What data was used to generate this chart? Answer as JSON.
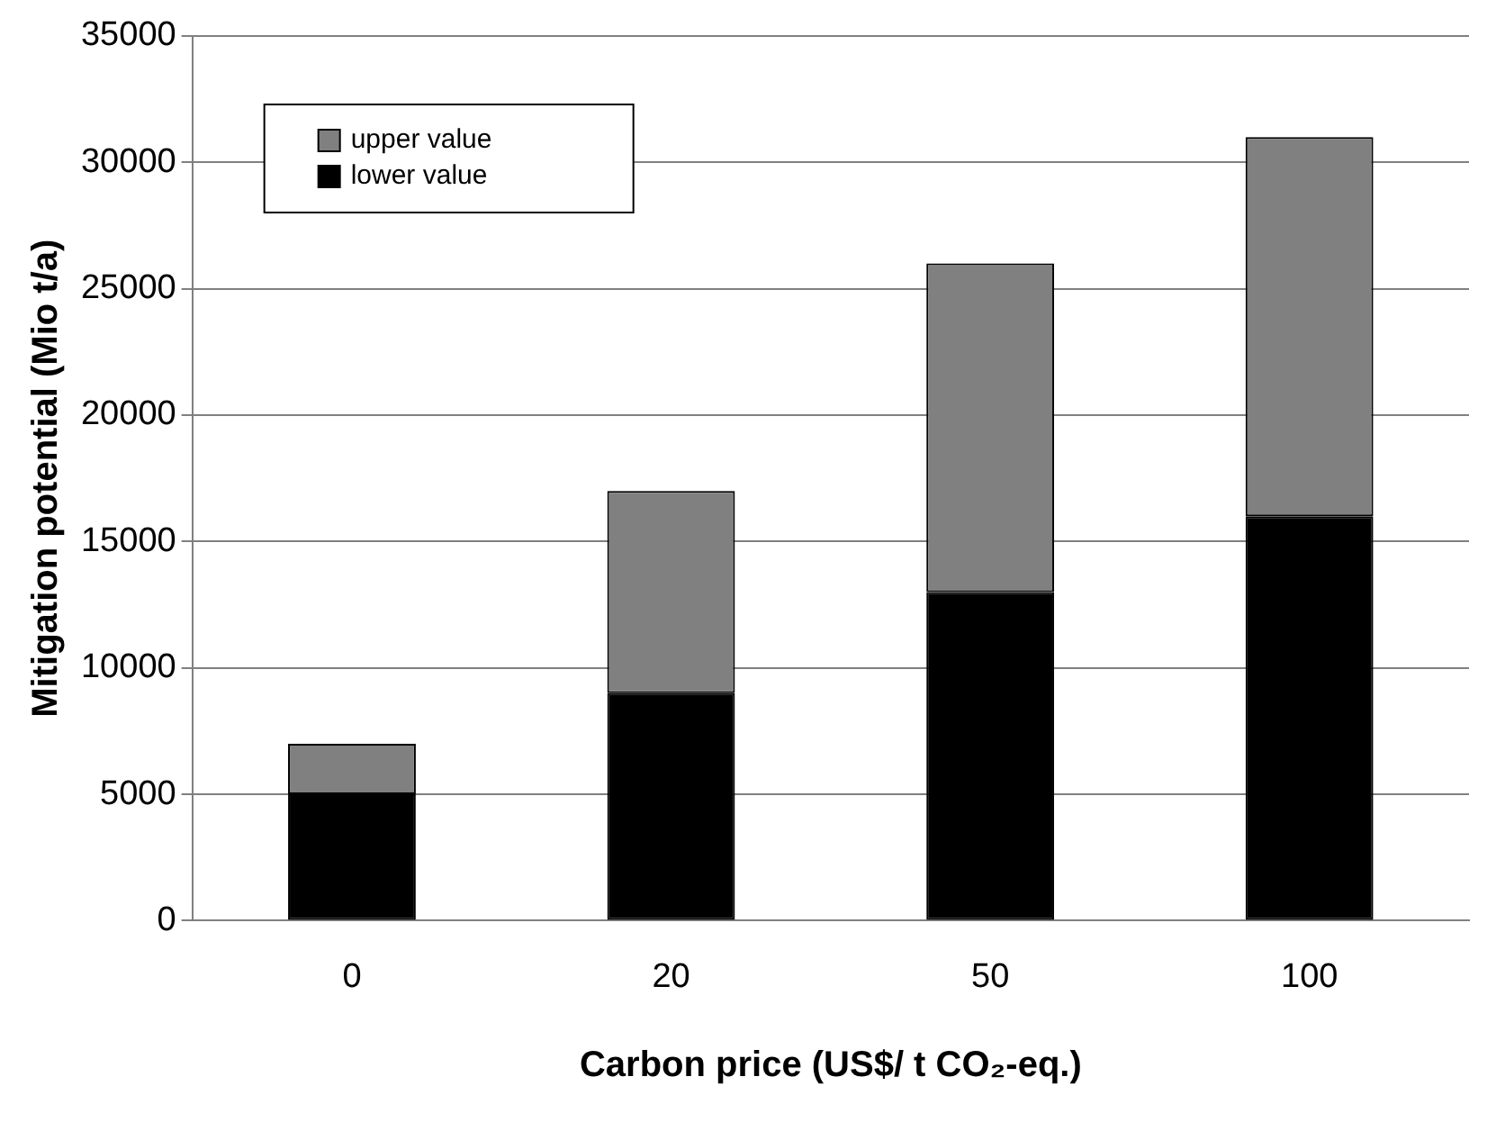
{
  "chart_data": {
    "type": "bar",
    "stacked": true,
    "xlabel": "Carbon price (US$/ t CO₂-eq.)",
    "ylabel": "Mitigation potential (Mio t/a)",
    "categories": [
      "0",
      "20",
      "50",
      "100"
    ],
    "series": [
      {
        "name": "lower value",
        "color": "#000000",
        "values": [
          5000,
          9000,
          13000,
          16000
        ]
      },
      {
        "name": "upper value",
        "color": "#808080",
        "values": [
          2000,
          8000,
          13000,
          15000
        ]
      }
    ],
    "ylim": [
      0,
      35000
    ],
    "yticks": [
      0,
      5000,
      10000,
      15000,
      20000,
      25000,
      30000,
      35000
    ],
    "grid": "y",
    "legend": "top left"
  }
}
